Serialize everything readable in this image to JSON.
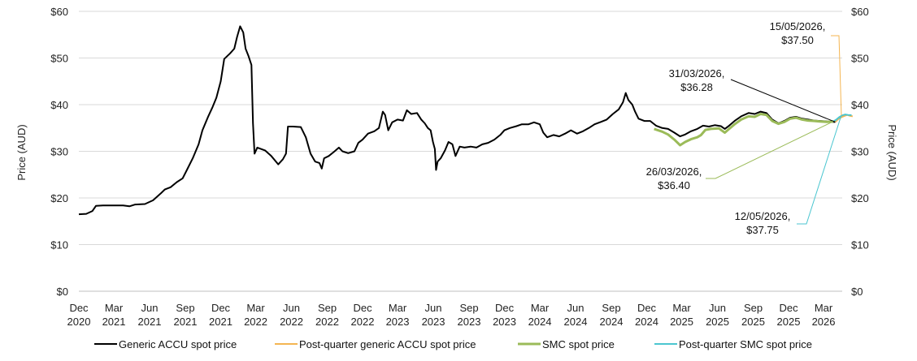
{
  "chart_data": {
    "type": "line",
    "title": "",
    "ylabel_left": "Price (AUD)",
    "ylabel_right": "Price (AUD)",
    "ylim": [
      0,
      60
    ],
    "y_ticks": [
      0,
      10,
      20,
      30,
      40,
      50,
      60
    ],
    "y_tick_labels": [
      "$0",
      "$10",
      "$20",
      "$30",
      "$40",
      "$50",
      "$60"
    ],
    "x_range": [
      "2020-12-01",
      "2026-04-18"
    ],
    "x_ticks": [
      {
        "date": "2020-12-01",
        "line1": "Dec",
        "line2": "2020"
      },
      {
        "date": "2021-03-01",
        "line1": "Mar",
        "line2": "2021"
      },
      {
        "date": "2021-06-01",
        "line1": "Jun",
        "line2": "2021"
      },
      {
        "date": "2021-09-01",
        "line1": "Sep",
        "line2": "2021"
      },
      {
        "date": "2021-12-01",
        "line1": "Dec",
        "line2": "2021"
      },
      {
        "date": "2022-03-01",
        "line1": "Mar",
        "line2": "2022"
      },
      {
        "date": "2022-06-01",
        "line1": "Jun",
        "line2": "2022"
      },
      {
        "date": "2022-09-01",
        "line1": "Sep",
        "line2": "2022"
      },
      {
        "date": "2022-12-01",
        "line1": "Dec",
        "line2": "2022"
      },
      {
        "date": "2023-03-01",
        "line1": "Mar",
        "line2": "2023"
      },
      {
        "date": "2023-06-01",
        "line1": "Jun",
        "line2": "2023"
      },
      {
        "date": "2023-09-01",
        "line1": "Sep",
        "line2": "2023"
      },
      {
        "date": "2023-12-01",
        "line1": "Dec",
        "line2": "2023"
      },
      {
        "date": "2024-03-01",
        "line1": "Mar",
        "line2": "2024"
      },
      {
        "date": "2024-06-01",
        "line1": "Jun",
        "line2": "2024"
      },
      {
        "date": "2024-09-01",
        "line1": "Sep",
        "line2": "2024"
      },
      {
        "date": "2024-12-01",
        "line1": "Dec",
        "line2": "2024"
      },
      {
        "date": "2025-03-01",
        "line1": "Mar",
        "line2": "2025"
      },
      {
        "date": "2025-06-01",
        "line1": "Jun",
        "line2": "2025"
      },
      {
        "date": "2025-09-01",
        "line1": "Sep",
        "line2": "2025"
      },
      {
        "date": "2025-12-01",
        "line1": "Dec",
        "line2": "2025"
      },
      {
        "date": "2026-03-01",
        "line1": "Mar",
        "line2": "2026"
      }
    ],
    "grid": "horizontal",
    "legend_position": "bottom",
    "series": [
      {
        "name": "Generic ACCU spot price",
        "color": "#000000",
        "points": [
          [
            "2020-12-01",
            16.5
          ],
          [
            "2020-12-20",
            16.6
          ],
          [
            "2021-01-05",
            17.2
          ],
          [
            "2021-01-14",
            18.3
          ],
          [
            "2021-02-01",
            18.4
          ],
          [
            "2021-03-01",
            18.4
          ],
          [
            "2021-03-25",
            18.4
          ],
          [
            "2021-04-10",
            18.2
          ],
          [
            "2021-04-25",
            18.6
          ],
          [
            "2021-05-20",
            18.7
          ],
          [
            "2021-06-10",
            19.5
          ],
          [
            "2021-06-30",
            21.0
          ],
          [
            "2021-07-10",
            21.8
          ],
          [
            "2021-07-25",
            22.3
          ],
          [
            "2021-08-10",
            23.4
          ],
          [
            "2021-08-25",
            24.2
          ],
          [
            "2021-09-05",
            26.0
          ],
          [
            "2021-09-20",
            28.5
          ],
          [
            "2021-10-05",
            31.5
          ],
          [
            "2021-10-15",
            34.5
          ],
          [
            "2021-10-30",
            37.5
          ],
          [
            "2021-11-10",
            39.5
          ],
          [
            "2021-11-20",
            41.5
          ],
          [
            "2021-12-01",
            45.0
          ],
          [
            "2021-12-10",
            49.8
          ],
          [
            "2021-12-25",
            51.0
          ],
          [
            "2022-01-05",
            52.0
          ],
          [
            "2022-01-12",
            54.5
          ],
          [
            "2022-01-20",
            56.8
          ],
          [
            "2022-01-28",
            55.5
          ],
          [
            "2022-02-03",
            52.0
          ],
          [
            "2022-02-10",
            50.5
          ],
          [
            "2022-02-18",
            48.5
          ],
          [
            "2022-02-22",
            36.0
          ],
          [
            "2022-02-26",
            29.5
          ],
          [
            "2022-03-05",
            30.8
          ],
          [
            "2022-03-25",
            30.2
          ],
          [
            "2022-04-10",
            29.0
          ],
          [
            "2022-04-28",
            27.2
          ],
          [
            "2022-05-10",
            28.3
          ],
          [
            "2022-05-18",
            29.5
          ],
          [
            "2022-05-23",
            35.3
          ],
          [
            "2022-06-05",
            35.3
          ],
          [
            "2022-06-25",
            35.2
          ],
          [
            "2022-07-08",
            33.0
          ],
          [
            "2022-07-20",
            29.5
          ],
          [
            "2022-08-01",
            27.8
          ],
          [
            "2022-08-12",
            27.5
          ],
          [
            "2022-08-18",
            26.3
          ],
          [
            "2022-08-24",
            28.5
          ],
          [
            "2022-09-05",
            29.0
          ],
          [
            "2022-09-20",
            30.0
          ],
          [
            "2022-10-01",
            30.8
          ],
          [
            "2022-10-10",
            30.0
          ],
          [
            "2022-10-25",
            29.6
          ],
          [
            "2022-11-10",
            30.0
          ],
          [
            "2022-11-20",
            31.8
          ],
          [
            "2022-12-01",
            32.5
          ],
          [
            "2022-12-15",
            33.8
          ],
          [
            "2022-12-31",
            34.3
          ],
          [
            "2023-01-12",
            35.0
          ],
          [
            "2023-01-22",
            38.5
          ],
          [
            "2023-01-28",
            37.8
          ],
          [
            "2023-02-05",
            34.5
          ],
          [
            "2023-02-15",
            36.2
          ],
          [
            "2023-03-01",
            36.8
          ],
          [
            "2023-03-15",
            36.6
          ],
          [
            "2023-03-25",
            38.8
          ],
          [
            "2023-04-05",
            38.0
          ],
          [
            "2023-04-20",
            38.2
          ],
          [
            "2023-05-01",
            36.8
          ],
          [
            "2023-05-10",
            36.0
          ],
          [
            "2023-05-18",
            35.0
          ],
          [
            "2023-05-25",
            34.5
          ],
          [
            "2023-05-31",
            32.0
          ],
          [
            "2023-06-05",
            30.5
          ],
          [
            "2023-06-08",
            26.0
          ],
          [
            "2023-06-12",
            27.8
          ],
          [
            "2023-06-20",
            28.5
          ],
          [
            "2023-07-01",
            30.2
          ],
          [
            "2023-07-10",
            32.0
          ],
          [
            "2023-07-20",
            31.5
          ],
          [
            "2023-07-28",
            29.0
          ],
          [
            "2023-08-08",
            31.0
          ],
          [
            "2023-08-20",
            30.8
          ],
          [
            "2023-09-05",
            31.0
          ],
          [
            "2023-09-20",
            30.8
          ],
          [
            "2023-10-05",
            31.5
          ],
          [
            "2023-10-20",
            31.8
          ],
          [
            "2023-11-05",
            32.5
          ],
          [
            "2023-11-20",
            33.5
          ],
          [
            "2023-12-01",
            34.5
          ],
          [
            "2023-12-15",
            35.0
          ],
          [
            "2024-01-01",
            35.4
          ],
          [
            "2024-01-15",
            35.8
          ],
          [
            "2024-02-01",
            35.8
          ],
          [
            "2024-02-15",
            36.2
          ],
          [
            "2024-03-01",
            35.8
          ],
          [
            "2024-03-10",
            34.0
          ],
          [
            "2024-03-20",
            33.0
          ],
          [
            "2024-04-05",
            33.5
          ],
          [
            "2024-04-20",
            33.2
          ],
          [
            "2024-05-05",
            33.8
          ],
          [
            "2024-05-20",
            34.5
          ],
          [
            "2024-06-05",
            33.8
          ],
          [
            "2024-06-20",
            34.3
          ],
          [
            "2024-07-05",
            35.0
          ],
          [
            "2024-07-20",
            35.8
          ],
          [
            "2024-08-05",
            36.3
          ],
          [
            "2024-08-20",
            36.8
          ],
          [
            "2024-09-05",
            38.0
          ],
          [
            "2024-09-20",
            39.0
          ],
          [
            "2024-10-01",
            40.5
          ],
          [
            "2024-10-08",
            42.5
          ],
          [
            "2024-10-15",
            41.0
          ],
          [
            "2024-10-25",
            40.0
          ],
          [
            "2024-11-01",
            38.5
          ],
          [
            "2024-11-10",
            37.0
          ],
          [
            "2024-11-25",
            36.5
          ],
          [
            "2024-12-10",
            36.5
          ],
          [
            "2024-12-25",
            35.5
          ],
          [
            "2025-01-10",
            35.0
          ],
          [
            "2025-01-25",
            34.8
          ],
          [
            "2025-02-10",
            34.0
          ],
          [
            "2025-02-25",
            33.2
          ],
          [
            "2025-03-10",
            33.6
          ],
          [
            "2025-03-25",
            34.3
          ],
          [
            "2025-04-10",
            34.8
          ],
          [
            "2025-04-25",
            35.5
          ],
          [
            "2025-05-10",
            35.3
          ],
          [
            "2025-05-25",
            35.6
          ],
          [
            "2025-06-10",
            35.4
          ],
          [
            "2025-06-20",
            34.8
          ],
          [
            "2025-07-01",
            35.5
          ],
          [
            "2025-07-15",
            36.5
          ],
          [
            "2025-08-01",
            37.5
          ],
          [
            "2025-08-20",
            38.2
          ],
          [
            "2025-09-05",
            38.0
          ],
          [
            "2025-09-20",
            38.5
          ],
          [
            "2025-10-05",
            38.2
          ],
          [
            "2025-10-20",
            36.8
          ],
          [
            "2025-11-05",
            36.0
          ],
          [
            "2025-11-20",
            36.5
          ],
          [
            "2025-12-05",
            37.2
          ],
          [
            "2025-12-20",
            37.4
          ],
          [
            "2026-01-05",
            37.0
          ],
          [
            "2026-01-20",
            36.8
          ],
          [
            "2026-02-05",
            36.6
          ],
          [
            "2026-02-20",
            36.5
          ],
          [
            "2026-03-10",
            36.4
          ],
          [
            "2026-03-20",
            36.3
          ],
          [
            "2026-03-31",
            36.28
          ]
        ]
      },
      {
        "name": "Post-quarter generic ACCU spot price",
        "color": "#f4b552",
        "points": [
          [
            "2026-03-31",
            36.28
          ],
          [
            "2026-04-08",
            36.9
          ],
          [
            "2026-04-16",
            37.3
          ],
          [
            "2026-04-24",
            37.6
          ],
          [
            "2026-05-01",
            37.8
          ],
          [
            "2026-05-08",
            37.6
          ],
          [
            "2026-05-15",
            37.5
          ]
        ]
      },
      {
        "name": "SMC spot price",
        "color": "#9bbb59",
        "points": [
          [
            "2024-12-20",
            34.8
          ],
          [
            "2025-01-10",
            34.2
          ],
          [
            "2025-01-25",
            33.6
          ],
          [
            "2025-02-10",
            32.5
          ],
          [
            "2025-02-25",
            31.3
          ],
          [
            "2025-03-10",
            32.0
          ],
          [
            "2025-03-25",
            32.6
          ],
          [
            "2025-04-10",
            33.0
          ],
          [
            "2025-04-20",
            33.5
          ],
          [
            "2025-05-01",
            34.6
          ],
          [
            "2025-05-15",
            34.8
          ],
          [
            "2025-06-05",
            34.9
          ],
          [
            "2025-06-20",
            34.0
          ],
          [
            "2025-07-01",
            34.8
          ],
          [
            "2025-07-15",
            35.8
          ],
          [
            "2025-08-01",
            36.8
          ],
          [
            "2025-08-20",
            37.5
          ],
          [
            "2025-09-05",
            37.4
          ],
          [
            "2025-09-20",
            38.0
          ],
          [
            "2025-10-05",
            37.8
          ],
          [
            "2025-10-20",
            36.5
          ],
          [
            "2025-11-05",
            35.9
          ],
          [
            "2025-11-20",
            36.3
          ],
          [
            "2025-12-05",
            37.0
          ],
          [
            "2025-12-20",
            37.2
          ],
          [
            "2026-01-05",
            36.8
          ],
          [
            "2026-01-20",
            36.6
          ],
          [
            "2026-02-05",
            36.5
          ],
          [
            "2026-02-20",
            36.4
          ],
          [
            "2026-03-10",
            36.3
          ],
          [
            "2026-03-26",
            36.4
          ]
        ]
      },
      {
        "name": "Post-quarter SMC spot price",
        "color": "#4bc6d0",
        "points": [
          [
            "2026-03-26",
            36.4
          ],
          [
            "2026-04-03",
            36.8
          ],
          [
            "2026-04-10",
            37.3
          ],
          [
            "2026-04-18",
            37.7
          ],
          [
            "2026-04-26",
            37.9
          ],
          [
            "2026-05-03",
            37.8
          ],
          [
            "2026-05-12",
            37.75
          ]
        ]
      }
    ],
    "annotations": [
      {
        "text1": "15/05/2026,",
        "text2": "$37.50",
        "color": "#f4b552",
        "date": "2026-05-15",
        "value": 37.5
      },
      {
        "text1": "31/03/2026,",
        "text2": "$36.28",
        "color": "#000000",
        "date": "2026-03-31",
        "value": 36.28
      },
      {
        "text1": "26/03/2026,",
        "text2": "$36.40",
        "color": "#9bbb59",
        "date": "2026-03-26",
        "value": 36.4
      },
      {
        "text1": "12/05/2026,",
        "text2": "$37.75",
        "color": "#4bc6d0",
        "date": "2026-05-12",
        "value": 37.75
      }
    ]
  }
}
